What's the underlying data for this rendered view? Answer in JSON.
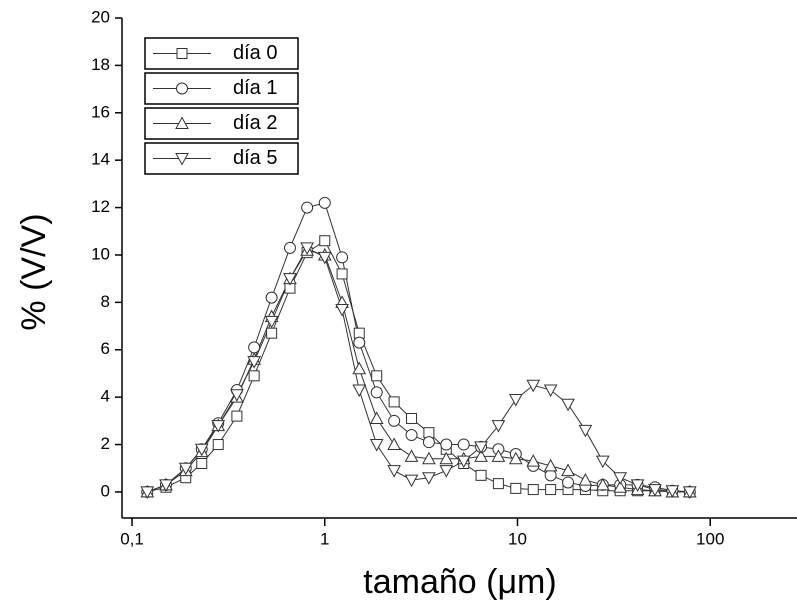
{
  "chart_data": {
    "type": "line",
    "x_label": "tamaño (μm)",
    "y_label": "% (V/V)",
    "xscale": "log",
    "x": [
      0.12,
      0.15,
      0.19,
      0.23,
      0.28,
      0.35,
      0.43,
      0.53,
      0.66,
      0.81,
      1.0,
      1.23,
      1.51,
      1.86,
      2.29,
      2.82,
      3.47,
      4.27,
      5.26,
      6.47,
      7.96,
      9.8,
      12.07,
      14.86,
      18.29,
      22.51,
      27.71,
      34.11,
      41.99,
      51.69,
      63.63,
      78.33
    ],
    "series": [
      {
        "name": "día 0",
        "color": "#333333",
        "marker": "square",
        "values": [
          0,
          0.2,
          0.6,
          1.2,
          2.0,
          3.2,
          4.9,
          6.7,
          8.6,
          10.1,
          10.6,
          9.2,
          6.7,
          4.9,
          3.8,
          3.1,
          2.5,
          1.8,
          1.2,
          0.7,
          0.35,
          0.15,
          0.1,
          0.1,
          0.1,
          0.1,
          0.05,
          0.05,
          0.05,
          0.05,
          0,
          0
        ]
      },
      {
        "name": "día 1",
        "color": "#333333",
        "marker": "circle",
        "values": [
          0,
          0.3,
          1.0,
          1.8,
          2.9,
          4.3,
          6.1,
          8.2,
          10.3,
          12.0,
          12.2,
          9.9,
          6.3,
          4.2,
          3.0,
          2.4,
          2.1,
          2.0,
          2.0,
          1.9,
          1.8,
          1.6,
          1.1,
          0.7,
          0.4,
          0.25,
          0.3,
          0.3,
          0.3,
          0.2,
          0.05,
          0
        ]
      },
      {
        "name": "día 2",
        "color": "#333333",
        "marker": "triangle",
        "values": [
          0,
          0.3,
          0.9,
          1.7,
          2.8,
          4.0,
          5.6,
          7.4,
          9.0,
          10.2,
          10.0,
          8.0,
          5.2,
          3.1,
          2.0,
          1.5,
          1.4,
          1.4,
          1.4,
          1.5,
          1.5,
          1.4,
          1.3,
          1.1,
          0.9,
          0.5,
          0.3,
          0.2,
          0.1,
          0.05,
          0,
          0
        ]
      },
      {
        "name": "día 5",
        "color": "#333333",
        "marker": "triangle-down",
        "values": [
          0,
          0.3,
          1.0,
          1.8,
          2.8,
          4.1,
          5.5,
          7.2,
          9.0,
          10.3,
          9.9,
          7.7,
          4.3,
          2.0,
          0.9,
          0.5,
          0.6,
          0.9,
          1.3,
          1.9,
          2.8,
          3.9,
          4.5,
          4.3,
          3.7,
          2.6,
          1.3,
          0.6,
          0.3,
          0.1,
          0.05,
          0
        ]
      }
    ],
    "xlim": [
      0.0887,
      282
    ],
    "xticks": [
      {
        "value": 0.1,
        "label": "0,1"
      },
      1,
      10,
      100
    ],
    "ylim": [
      -1.1,
      20
    ],
    "yticks": [
      0,
      2,
      4,
      6,
      8,
      10,
      12,
      14,
      16,
      18,
      20
    ],
    "legend": "top-left"
  }
}
